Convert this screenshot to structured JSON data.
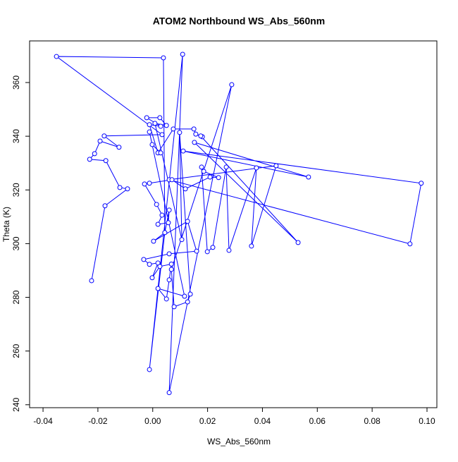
{
  "chart_data": {
    "type": "line",
    "title": "ATOM2 Northbound WS_Abs_560nm",
    "xlabel": "WS_Abs_560nm",
    "ylabel": "Theta (K)",
    "x": [
      -0.0223,
      -0.0174,
      -0.0092,
      -0.012,
      -0.0171,
      -0.023,
      -0.0212,
      -0.0192,
      -0.0123,
      -0.0177,
      0.0034,
      -0.0351,
      0.0039,
      0.0044,
      -0.0012,
      0.0109,
      0.006,
      0.0288,
      0.0068,
      0.0078,
      0.0127,
      0.0137,
      0.0098,
      0.0106,
      0.0008,
      0.005,
      0.0026,
      -0.0022,
      0.0029,
      -0.0012,
      0.0019,
      0.0075,
      0.015,
      0.0157,
      0.0181,
      0.0175,
      0.053,
      0.0152,
      0.0568,
      0.0111,
      0.0979,
      0.0938,
      0.006,
      0.045,
      0.036,
      0.0378,
      0.0278,
      0.0268,
      0.0219,
      0.0199,
      0.0178,
      0.0186,
      0.024,
      0.0209,
      0.0119,
      0.007,
      -0.0012,
      -0.003,
      0.0014,
      0.0034,
      0.0019,
      0.0057,
      0.006,
      0.0044,
      0.0003,
      0.0127,
      0.016,
      0.006,
      -0.0033,
      -0.0012,
      0.0019,
      -0.0002,
      0.0026,
      0.0068,
      0.006,
      0.005,
      0.0019,
      0.0116,
      -0.0012,
      -0.0002,
      0.0029
    ],
    "series": [
      {
        "name": "Theta",
        "color": "#0000ff",
        "values": [
          286.2,
          314.1,
          320.4,
          320.9,
          330.9,
          331.4,
          333.5,
          338.2,
          335.9,
          340.1,
          340.6,
          369.7,
          369.2,
          304.1,
          253.1,
          370.5,
          244.5,
          359.2,
          290.4,
          276.5,
          278.3,
          281.2,
          341.4,
          301.5,
          344.8,
          344.0,
          346.9,
          346.9,
          343.7,
          344.3,
          333.8,
          342.7,
          342.7,
          340.8,
          339.8,
          340.1,
          300.4,
          337.7,
          324.8,
          334.5,
          322.5,
          299.9,
          323.8,
          329.0,
          299.1,
          328.2,
          297.5,
          328.5,
          298.6,
          297.0,
          328.5,
          326.9,
          324.6,
          324.8,
          320.4,
          323.8,
          322.5,
          322.2,
          314.6,
          310.6,
          307.2,
          307.8,
          312.5,
          304.1,
          300.9,
          308.3,
          297.2,
          296.2,
          294.1,
          292.3,
          292.8,
          287.3,
          291.5,
          292.4,
          286.5,
          279.4,
          283.3,
          280.4,
          341.6,
          336.9,
          333.8
        ]
      }
    ],
    "xlim": [
      -0.0449,
      0.1036
    ],
    "ylim": [
      238.9,
      375.5
    ],
    "xticks": [
      -0.04,
      -0.02,
      {
        "value": 0,
        "label": "0.00"
      },
      0.02,
      0.04,
      0.06,
      0.08,
      {
        "value": 0.1,
        "label": "0.10"
      }
    ],
    "yticks": [
      240,
      260,
      280,
      300,
      320,
      340,
      360
    ]
  }
}
